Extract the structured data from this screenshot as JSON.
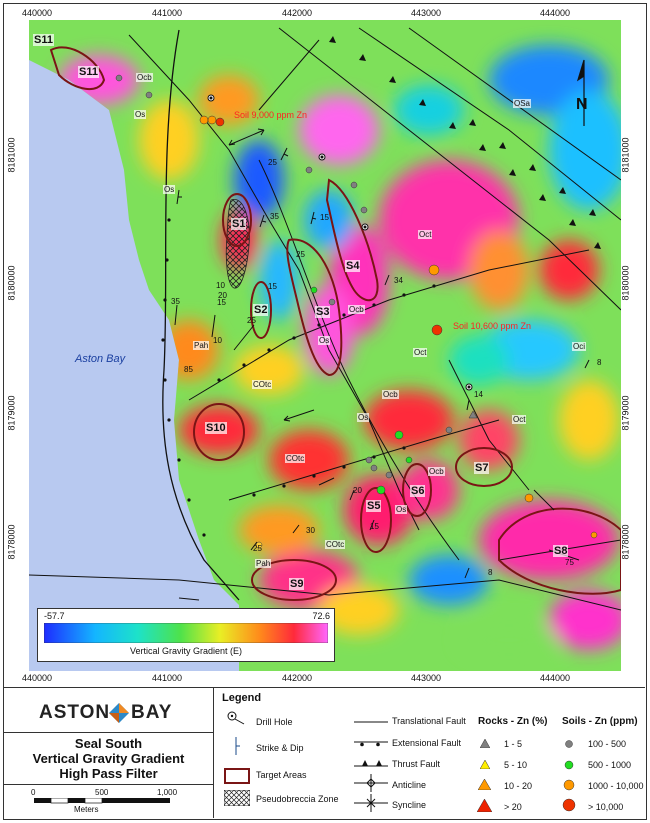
{
  "map": {
    "easting_ticks": [
      "440000",
      "441000",
      "442000",
      "443000",
      "444000"
    ],
    "northing_ticks": [
      "8181000",
      "8180000",
      "8179000",
      "8178000"
    ],
    "water_label": "Aston Bay",
    "north_label": "N",
    "targets": [
      "S1",
      "S2",
      "S3",
      "S4",
      "S5",
      "S6",
      "S7",
      "S8",
      "S9",
      "S10",
      "S11",
      "S11"
    ],
    "geology_labels": [
      "Ocb",
      "Os",
      "Os",
      "Oct",
      "Ocb",
      "Os",
      "Oct",
      "Oci",
      "OSa",
      "Pah",
      "COtc",
      "Ocb",
      "Os",
      "Oct",
      "COtc",
      "Ocb",
      "Os",
      "COtc",
      "Pah"
    ],
    "dip_values": [
      "25",
      "15",
      "35",
      "15",
      "25",
      "10",
      "20",
      "15",
      "25",
      "34",
      "10",
      "35",
      "85",
      "14",
      "20",
      "15",
      "30",
      "25",
      "8",
      "8",
      "75"
    ],
    "soil_annotations": [
      "Soil 9,000 ppm Zn",
      "Soil 10,600 ppm Zn"
    ],
    "colorbar": {
      "min": "-57.7",
      "max": "72.6",
      "label": "Vertical Gravity Gradient (E)"
    }
  },
  "titleblock": {
    "logo_left": "ASTON",
    "logo_right": "BAY",
    "title_lines": [
      "Seal South",
      "Vertical Gravity Gradient",
      "High Pass Filter"
    ],
    "scale_ticks": [
      "0",
      "500",
      "1,000"
    ],
    "scale_unit": "Meters"
  },
  "legend": {
    "title": "Legend",
    "items": [
      "Drill Hole",
      "Strike & Dip",
      "Target Areas",
      "Pseudobreccia Zone"
    ],
    "faults": [
      "Translational Fault",
      "Extensional Fault",
      "Thrust Fault",
      "Anticline",
      "Syncline"
    ],
    "rocks_title": "Rocks - Zn (%)",
    "rocks": [
      "1 - 5",
      "5 - 10",
      "10 - 20",
      "> 20"
    ],
    "soils_title": "Soils - Zn (ppm)",
    "soils": [
      "100 - 500",
      "500 - 1000",
      "1000 - 10,000",
      "> 10,000"
    ],
    "colors": {
      "rock_1": "#808080",
      "rock_2": "#ffee00",
      "rock_3": "#ff9900",
      "rock_4": "#ee2200",
      "soil_1": "#808080",
      "soil_2": "#22dd22",
      "soil_3": "#ff9900",
      "soil_4": "#ee3300",
      "target": "#7a1515",
      "water": "#b8c9f0"
    }
  }
}
